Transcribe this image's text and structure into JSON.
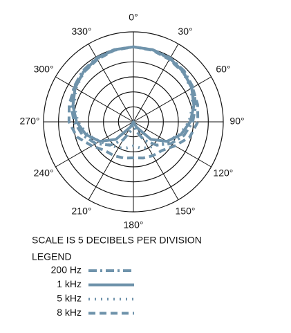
{
  "chart_data": {
    "type": "polar",
    "scale_note": "SCALE IS 5 DECIBELS PER DIVISION",
    "legend_title": "LEGEND",
    "theta": [
      0,
      15,
      30,
      45,
      60,
      75,
      90,
      105,
      120,
      135,
      150,
      165,
      180,
      195,
      210,
      225,
      240,
      255,
      270,
      285,
      300,
      315,
      330,
      345
    ],
    "thetaticks": [
      {
        "value": 0,
        "label": "0°"
      },
      {
        "value": 30,
        "label": "30°"
      },
      {
        "value": 60,
        "label": "60°"
      },
      {
        "value": 90,
        "label": "90°"
      },
      {
        "value": 120,
        "label": "120°"
      },
      {
        "value": 150,
        "label": "150°"
      },
      {
        "value": 180,
        "label": "180°"
      },
      {
        "value": 210,
        "label": "210°"
      },
      {
        "value": 240,
        "label": "240°"
      },
      {
        "value": 270,
        "label": "270°"
      },
      {
        "value": 300,
        "label": "300°"
      },
      {
        "value": 330,
        "label": "330°"
      }
    ],
    "rlim": [
      -25,
      5
    ],
    "rticks": [
      -20,
      -15,
      -10,
      -5,
      0,
      5
    ],
    "grid": true,
    "series": [
      {
        "name": "200 Hz",
        "color": "#6f93ab",
        "dash": "dash-dot",
        "values": [
          0,
          -0.1,
          -0.4,
          -1.0,
          -2.0,
          -3.4,
          -5.2,
          -7.5,
          -10.5,
          -14,
          -18,
          -22,
          -25,
          -22,
          -18,
          -14,
          -10.5,
          -7.5,
          -5.2,
          -3.4,
          -2.0,
          -1.0,
          -0.4,
          -0.1
        ]
      },
      {
        "name": "1 kHz",
        "color": "#6f93ab",
        "dash": "solid",
        "values": [
          0,
          -0.1,
          -0.6,
          -1.4,
          -2.5,
          -4.1,
          -6.0,
          -8.6,
          -12.0,
          -16.7,
          -23,
          -25,
          -25,
          -25,
          -23,
          -16.7,
          -12.0,
          -8.6,
          -6.0,
          -4.1,
          -2.5,
          -1.4,
          -0.6,
          -0.1
        ]
      },
      {
        "name": "5 kHz",
        "color": "#6f93ab",
        "dash": "dotted",
        "values": [
          0,
          -0.2,
          -0.8,
          -1.6,
          -2.8,
          -4.5,
          -6.5,
          -9,
          -12,
          -14,
          -15,
          -16,
          -17,
          -16,
          -15,
          -14,
          -12,
          -9,
          -6.5,
          -4.5,
          -2.8,
          -1.6,
          -0.8,
          -0.2
        ]
      },
      {
        "name": "8 kHz",
        "color": "#6f93ab",
        "dash": "dashed",
        "values": [
          0,
          -0.3,
          -1.0,
          -1.6,
          -2.2,
          -2.8,
          -3.5,
          -5.5,
          -9,
          -11.5,
          -12,
          -12.5,
          -13,
          -12.5,
          -12,
          -11.5,
          -9,
          -5.5,
          -3.5,
          -2.8,
          -2.2,
          -1.6,
          -1.0,
          -0.3
        ]
      }
    ]
  }
}
